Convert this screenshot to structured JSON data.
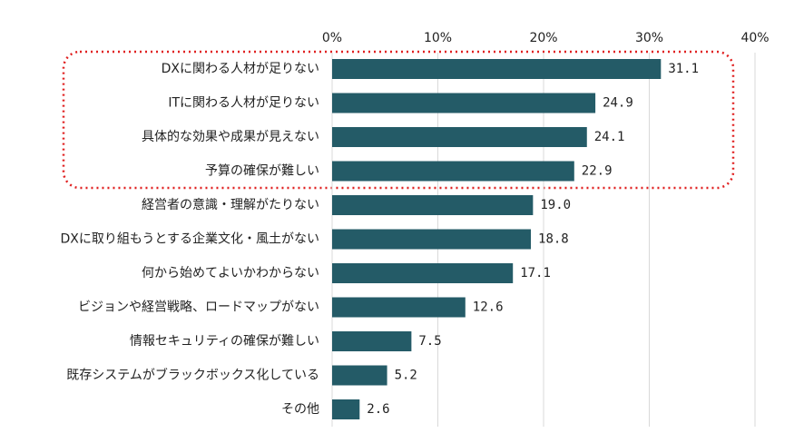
{
  "chart_data": {
    "type": "bar",
    "orientation": "horizontal",
    "categories": [
      "DXに関わる人材が足りない",
      "ITに関わる人材が足りない",
      "具体的な効果や成果が見えない",
      "予算の確保が難しい",
      "経営者の意識・理解がたりない",
      "DXに取り組もうとする企業文化・風土がない",
      "何から始めてよいかわからない",
      "ビジョンや経営戦略、ロードマップがない",
      "情報セキュリティの確保が難しい",
      "既存システムがブラックボックス化している",
      "その他"
    ],
    "values": [
      31.1,
      24.9,
      24.1,
      22.9,
      19.0,
      18.8,
      17.1,
      12.6,
      7.5,
      5.2,
      2.6
    ],
    "value_labels": [
      "31.1",
      "24.9",
      "24.1",
      "22.9",
      "19.0",
      "18.8",
      "17.1",
      "12.6",
      "7.5",
      "5.2",
      "2.6"
    ],
    "color": "#245b67",
    "xlim": [
      0,
      40
    ],
    "xticks": [
      {
        "value": 0,
        "label": "0%"
      },
      {
        "value": 10,
        "label": "10%"
      },
      {
        "value": 20,
        "label": "20%"
      },
      {
        "value": 30,
        "label": "30%"
      },
      {
        "value": 40,
        "label": "40%"
      }
    ],
    "grid": true
  }
}
